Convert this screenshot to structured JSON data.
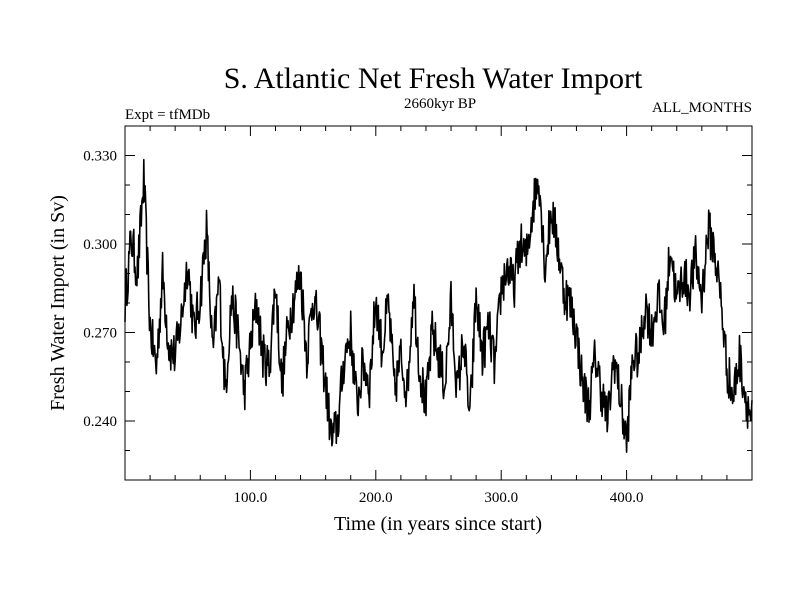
{
  "chart_data": {
    "type": "line",
    "title": "S. Atlantic Net Fresh Water Import",
    "subtitle": "2660kyr BP",
    "left_label": "Expt = tfMDb",
    "right_label": "ALL_MONTHS",
    "xlabel": "Time (in years since start)",
    "ylabel": "Fresh Water Import (in Sv)",
    "xlim": [
      0,
      500
    ],
    "ylim": [
      0.22,
      0.34
    ],
    "xticks": [
      100,
      200,
      300,
      400
    ],
    "xtick_labels": [
      "100.0",
      "200.0",
      "300.0",
      "400.0"
    ],
    "yticks": [
      0.24,
      0.27,
      0.3,
      0.33
    ],
    "ytick_labels": [
      "0.240",
      "0.270",
      "0.300",
      "0.330"
    ],
    "series": [
      {
        "name": "fresh water import",
        "x": [
          0,
          5,
          10,
          15,
          20,
          25,
          30,
          35,
          40,
          45,
          50,
          55,
          60,
          65,
          70,
          75,
          80,
          85,
          90,
          95,
          100,
          105,
          110,
          115,
          120,
          125,
          130,
          135,
          140,
          145,
          150,
          155,
          160,
          165,
          170,
          175,
          180,
          185,
          190,
          195,
          200,
          205,
          210,
          215,
          220,
          225,
          230,
          235,
          240,
          245,
          250,
          255,
          260,
          265,
          270,
          275,
          280,
          285,
          290,
          295,
          300,
          305,
          310,
          315,
          320,
          325,
          330,
          335,
          340,
          345,
          350,
          355,
          360,
          365,
          370,
          375,
          380,
          385,
          390,
          395,
          400,
          405,
          410,
          415,
          420,
          425,
          430,
          435,
          440,
          445,
          450,
          455,
          460,
          465,
          470,
          475,
          480,
          485,
          490,
          495,
          500
        ],
        "values": [
          0.28,
          0.302,
          0.29,
          0.322,
          0.272,
          0.258,
          0.29,
          0.265,
          0.262,
          0.275,
          0.294,
          0.27,
          0.282,
          0.305,
          0.262,
          0.288,
          0.25,
          0.282,
          0.27,
          0.25,
          0.265,
          0.28,
          0.262,
          0.258,
          0.287,
          0.252,
          0.272,
          0.282,
          0.29,
          0.262,
          0.283,
          0.27,
          0.252,
          0.233,
          0.24,
          0.262,
          0.27,
          0.245,
          0.26,
          0.252,
          0.282,
          0.264,
          0.28,
          0.25,
          0.262,
          0.25,
          0.285,
          0.258,
          0.245,
          0.27,
          0.262,
          0.252,
          0.28,
          0.25,
          0.268,
          0.24,
          0.282,
          0.262,
          0.272,
          0.258,
          0.285,
          0.292,
          0.285,
          0.3,
          0.295,
          0.312,
          0.324,
          0.292,
          0.312,
          0.3,
          0.284,
          0.28,
          0.27,
          0.252,
          0.245,
          0.262,
          0.25,
          0.24,
          0.262,
          0.248,
          0.232,
          0.262,
          0.262,
          0.28,
          0.27,
          0.282,
          0.272,
          0.3,
          0.28,
          0.29,
          0.284,
          0.295,
          0.282,
          0.305,
          0.298,
          0.282,
          0.258,
          0.248,
          0.262,
          0.248,
          0.24
        ]
      }
    ]
  }
}
